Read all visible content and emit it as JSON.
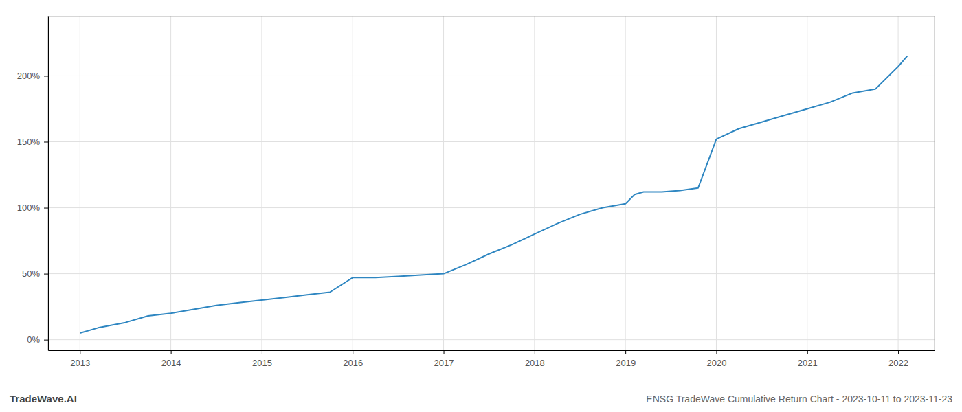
{
  "chart_data": {
    "type": "line",
    "title": "ENSG TradeWave Cumulative Return Chart - 2023-10-11 to 2023-11-23",
    "annotations": [
      "TradeWave.AI"
    ],
    "color": "#2e86c1",
    "grid": true,
    "x": [
      2013.0,
      2013.2,
      2013.5,
      2013.75,
      2014.0,
      2014.25,
      2014.5,
      2014.75,
      2015.0,
      2015.25,
      2015.5,
      2015.75,
      2016.0,
      2016.25,
      2016.5,
      2016.75,
      2017.0,
      2017.25,
      2017.5,
      2017.75,
      2018.0,
      2018.25,
      2018.5,
      2018.75,
      2019.0,
      2019.1,
      2019.2,
      2019.4,
      2019.6,
      2019.8,
      2020.0,
      2020.25,
      2020.5,
      2020.75,
      2021.0,
      2021.25,
      2021.5,
      2021.75,
      2022.0,
      2022.1
    ],
    "values": [
      0.05,
      0.09,
      0.13,
      0.18,
      0.2,
      0.23,
      0.26,
      0.28,
      0.3,
      0.32,
      0.34,
      0.36,
      0.47,
      0.47,
      0.48,
      0.49,
      0.5,
      0.57,
      0.65,
      0.72,
      0.8,
      0.88,
      0.95,
      1.0,
      1.03,
      1.1,
      1.12,
      1.12,
      1.13,
      1.15,
      1.52,
      1.6,
      1.65,
      1.7,
      1.75,
      1.8,
      1.87,
      1.9,
      2.07,
      2.15
    ],
    "xlim": [
      2012.65,
      2022.4
    ],
    "xticks": [
      2013,
      2014,
      2015,
      2016,
      2017,
      2018,
      2019,
      2020,
      2021,
      2022
    ],
    "ylim": [
      -0.08,
      2.45
    ],
    "yticks": [
      {
        "value": 0,
        "label": "0%"
      },
      {
        "value": 0.5,
        "label": "50%"
      },
      {
        "value": 1,
        "label": "100%"
      },
      {
        "value": 1.5,
        "label": "150%"
      },
      {
        "value": 2,
        "label": "200%"
      }
    ]
  }
}
